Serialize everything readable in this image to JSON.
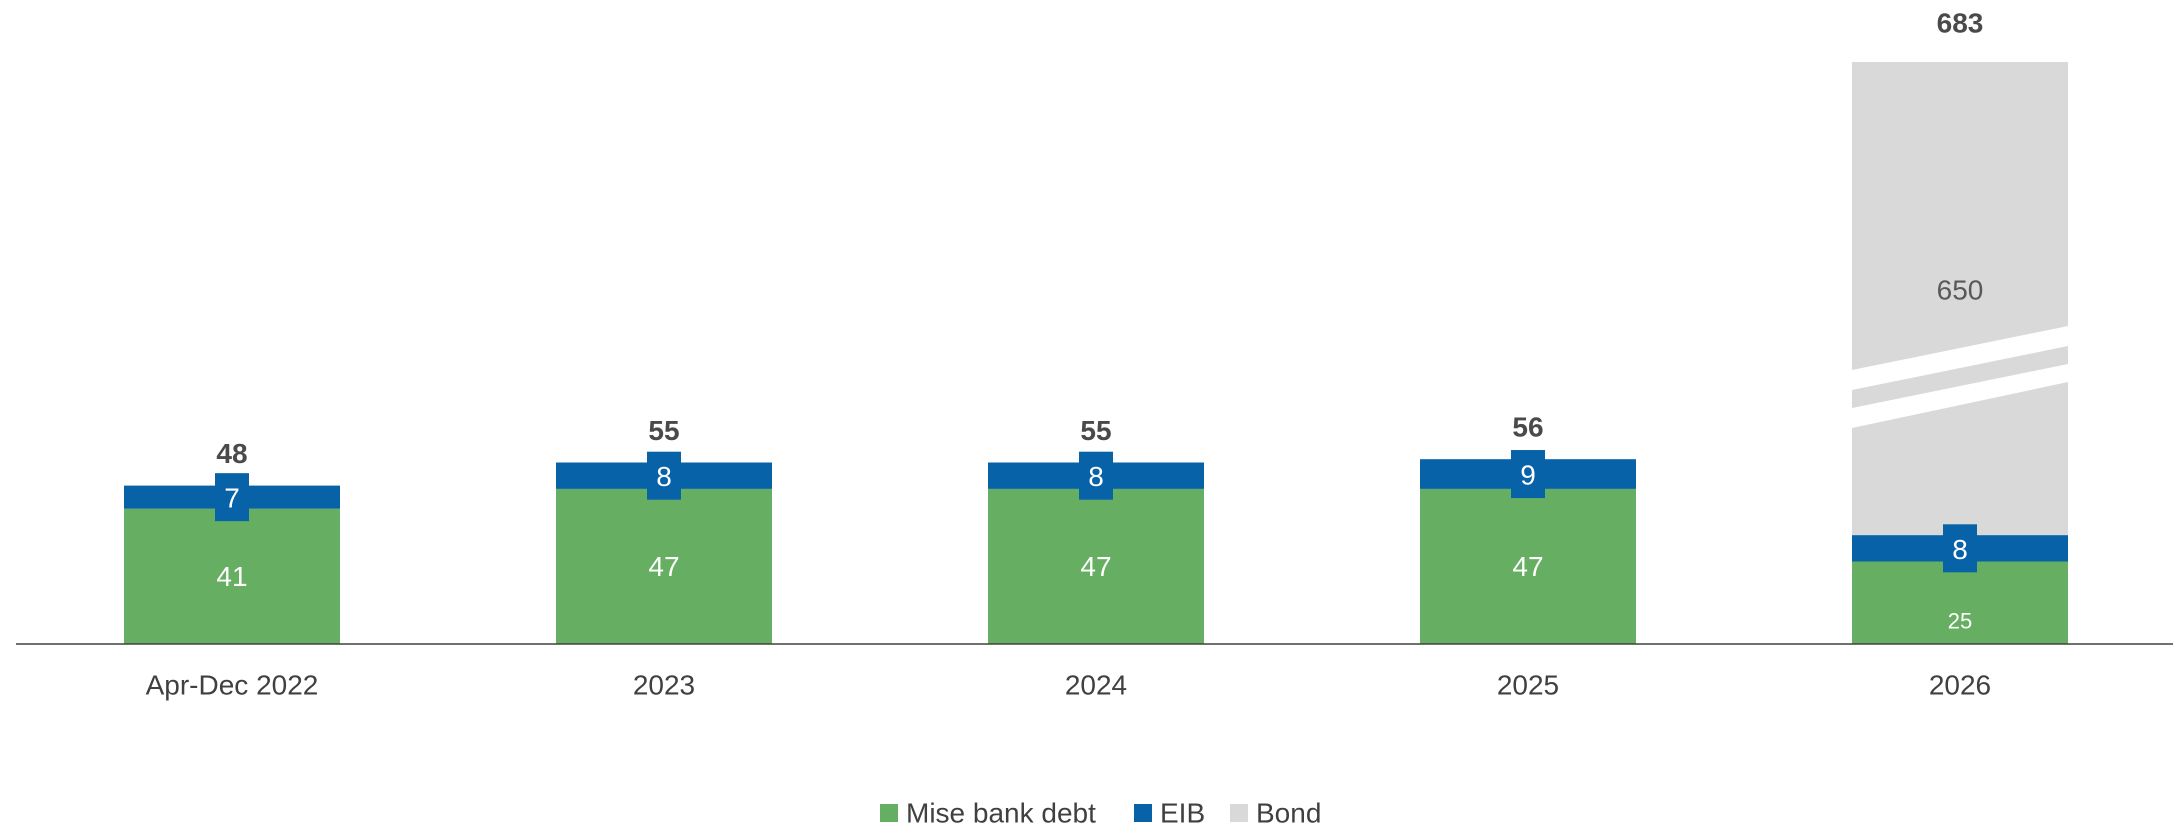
{
  "chart_data": {
    "type": "bar",
    "stacked": true,
    "categories": [
      "Apr-Dec 2022",
      "2023",
      "2024",
      "2025",
      "2026"
    ],
    "series": [
      {
        "name": "Mise bank debt",
        "color": "#66AE62",
        "values": [
          41,
          47,
          47,
          47,
          25
        ]
      },
      {
        "name": "EIB",
        "color": "#0762A7",
        "values": [
          7,
          8,
          8,
          9,
          8
        ]
      },
      {
        "name": "Bond",
        "color": "#D9D9D9",
        "values": [
          0,
          0,
          0,
          0,
          650
        ]
      }
    ],
    "totals": [
      "48",
      "55",
      "55",
      "56",
      "683"
    ],
    "axis_break": {
      "category": "2026",
      "series": "Bond"
    },
    "legend_position": "bottom",
    "gridlines": false,
    "colors": {
      "total_label": "#4A4A4A",
      "axis": "#404040",
      "bond_label": "#595959"
    }
  }
}
